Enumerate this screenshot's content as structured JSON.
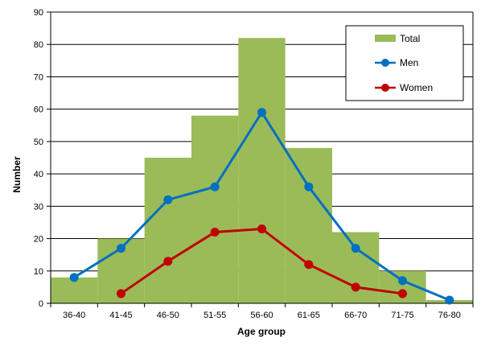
{
  "chart_data": {
    "type": "bar",
    "xlabel": "Age group",
    "ylabel": "Number",
    "ylim": [
      0,
      90
    ],
    "yticks": [
      0,
      10,
      20,
      30,
      40,
      50,
      60,
      70,
      80,
      90
    ],
    "grid": true,
    "legend_position": "top-right",
    "categories": [
      "36-40",
      "41-45",
      "46-50",
      "51-55",
      "56-60",
      "61-65",
      "66-70",
      "71-75",
      "76-80"
    ],
    "series": [
      {
        "name": "Total",
        "type": "bar",
        "color": "#9BBB59",
        "values": [
          8,
          20,
          45,
          58,
          82,
          48,
          22,
          10,
          1
        ]
      },
      {
        "name": "Men",
        "type": "line",
        "color": "#0070C0",
        "values": [
          8,
          17,
          32,
          36,
          59,
          36,
          17,
          7,
          1
        ]
      },
      {
        "name": "Women",
        "type": "line",
        "color": "#C00000",
        "values": [
          null,
          3,
          13,
          22,
          23,
          12,
          5,
          3,
          null
        ]
      }
    ]
  }
}
